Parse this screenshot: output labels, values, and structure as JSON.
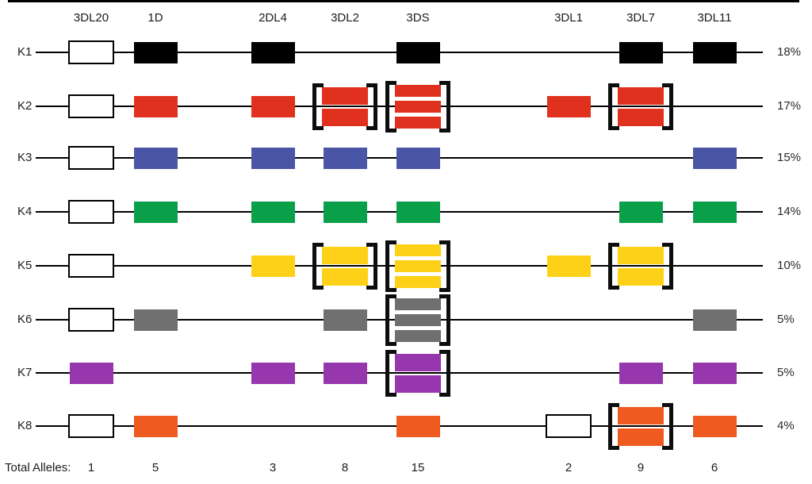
{
  "figure": {
    "description": "KIR haplotype gene-content diagram, rows K1-K8",
    "columns": [
      {
        "gene": "3DL20",
        "total": "1"
      },
      {
        "gene": "1D",
        "total": "5"
      },
      {
        "gene": "2DL4",
        "total": "3"
      },
      {
        "gene": "3DL2",
        "total": "8"
      },
      {
        "gene": "3DS",
        "total": "15"
      },
      {
        "gene": "3DL1",
        "total": "2"
      },
      {
        "gene": "3DL7",
        "total": "9"
      },
      {
        "gene": "3DL11",
        "total": "6"
      }
    ],
    "total_alleles_label": "Total Alleles:",
    "colors": {
      "k1_black": "#000000",
      "k2_red": "#e0301e",
      "k3_blue": "#4b55a5",
      "k4_green": "#0aa04a",
      "k5_yellow": "#fdd118",
      "k6_gray": "#6f6f6f",
      "k7_purple": "#9637ad",
      "k8_orange": "#ee5a20",
      "outline_box": "#ffffff",
      "line": "#000000",
      "bracket": "#0d0d0d"
    },
    "haplotypes": [
      {
        "label": "K1",
        "percent": "18%",
        "color": "#000000",
        "boxes": [
          {
            "col": 0,
            "style": "outline",
            "count": 1,
            "bracket": false
          },
          {
            "col": 1,
            "style": "filled",
            "count": 1,
            "bracket": false
          },
          {
            "col": 2,
            "style": "filled",
            "count": 1,
            "bracket": false
          },
          {
            "col": 4,
            "style": "filled",
            "count": 1,
            "bracket": false
          },
          {
            "col": 6,
            "style": "filled",
            "count": 1,
            "bracket": false
          },
          {
            "col": 7,
            "style": "filled",
            "count": 1,
            "bracket": false
          }
        ]
      },
      {
        "label": "K2",
        "percent": "17%",
        "color": "#e0301e",
        "boxes": [
          {
            "col": 0,
            "style": "outline",
            "count": 1,
            "bracket": false
          },
          {
            "col": 1,
            "style": "filled",
            "count": 1,
            "bracket": false
          },
          {
            "col": 2,
            "style": "filled",
            "count": 1,
            "bracket": false
          },
          {
            "col": 3,
            "style": "filled",
            "count": 2,
            "bracket": true
          },
          {
            "col": 4,
            "style": "filled",
            "count": 3,
            "bracket": true
          },
          {
            "col": 5,
            "style": "filled",
            "count": 1,
            "bracket": false
          },
          {
            "col": 6,
            "style": "filled",
            "count": 2,
            "bracket": true
          }
        ]
      },
      {
        "label": "K3",
        "percent": "15%",
        "color": "#4b55a5",
        "boxes": [
          {
            "col": 0,
            "style": "outline",
            "count": 1,
            "bracket": false
          },
          {
            "col": 1,
            "style": "filled",
            "count": 1,
            "bracket": false
          },
          {
            "col": 2,
            "style": "filled",
            "count": 1,
            "bracket": false
          },
          {
            "col": 3,
            "style": "filled",
            "count": 1,
            "bracket": false
          },
          {
            "col": 4,
            "style": "filled",
            "count": 1,
            "bracket": false
          },
          {
            "col": 7,
            "style": "filled",
            "count": 1,
            "bracket": false
          }
        ]
      },
      {
        "label": "K4",
        "percent": "14%",
        "color": "#0aa04a",
        "boxes": [
          {
            "col": 0,
            "style": "outline",
            "count": 1,
            "bracket": false
          },
          {
            "col": 1,
            "style": "filled",
            "count": 1,
            "bracket": false
          },
          {
            "col": 2,
            "style": "filled",
            "count": 1,
            "bracket": false
          },
          {
            "col": 3,
            "style": "filled",
            "count": 1,
            "bracket": false
          },
          {
            "col": 4,
            "style": "filled",
            "count": 1,
            "bracket": false
          },
          {
            "col": 6,
            "style": "filled",
            "count": 1,
            "bracket": false
          },
          {
            "col": 7,
            "style": "filled",
            "count": 1,
            "bracket": false
          }
        ]
      },
      {
        "label": "K5",
        "percent": "10%",
        "color": "#fdd118",
        "boxes": [
          {
            "col": 0,
            "style": "outline",
            "count": 1,
            "bracket": false
          },
          {
            "col": 2,
            "style": "filled",
            "count": 1,
            "bracket": false
          },
          {
            "col": 3,
            "style": "filled",
            "count": 2,
            "bracket": true
          },
          {
            "col": 4,
            "style": "filled",
            "count": 3,
            "bracket": true
          },
          {
            "col": 5,
            "style": "filled",
            "count": 1,
            "bracket": false
          },
          {
            "col": 6,
            "style": "filled",
            "count": 2,
            "bracket": true
          }
        ]
      },
      {
        "label": "K6",
        "percent": "5%",
        "color": "#6f6f6f",
        "boxes": [
          {
            "col": 0,
            "style": "outline",
            "count": 1,
            "bracket": false
          },
          {
            "col": 1,
            "style": "filled",
            "count": 1,
            "bracket": false
          },
          {
            "col": 3,
            "style": "filled",
            "count": 1,
            "bracket": false
          },
          {
            "col": 4,
            "style": "filled",
            "count": 3,
            "bracket": true
          },
          {
            "col": 7,
            "style": "filled",
            "count": 1,
            "bracket": false
          }
        ]
      },
      {
        "label": "K7",
        "percent": "5%",
        "color": "#9637ad",
        "boxes": [
          {
            "col": 0,
            "style": "filled",
            "count": 1,
            "bracket": false
          },
          {
            "col": 2,
            "style": "filled",
            "count": 1,
            "bracket": false
          },
          {
            "col": 3,
            "style": "filled",
            "count": 1,
            "bracket": false
          },
          {
            "col": 4,
            "style": "filled",
            "count": 2,
            "bracket": true
          },
          {
            "col": 6,
            "style": "filled",
            "count": 1,
            "bracket": false
          },
          {
            "col": 7,
            "style": "filled",
            "count": 1,
            "bracket": false
          }
        ]
      },
      {
        "label": "K8",
        "percent": "4%",
        "color": "#ee5a20",
        "boxes": [
          {
            "col": 0,
            "style": "outline",
            "count": 1,
            "bracket": false
          },
          {
            "col": 1,
            "style": "filled",
            "count": 1,
            "bracket": false
          },
          {
            "col": 4,
            "style": "filled",
            "count": 1,
            "bracket": false
          },
          {
            "col": 5,
            "style": "outline",
            "count": 1,
            "bracket": false
          },
          {
            "col": 6,
            "style": "filled",
            "count": 2,
            "bracket": true
          },
          {
            "col": 7,
            "style": "filled",
            "count": 1,
            "bracket": false
          }
        ]
      }
    ]
  }
}
